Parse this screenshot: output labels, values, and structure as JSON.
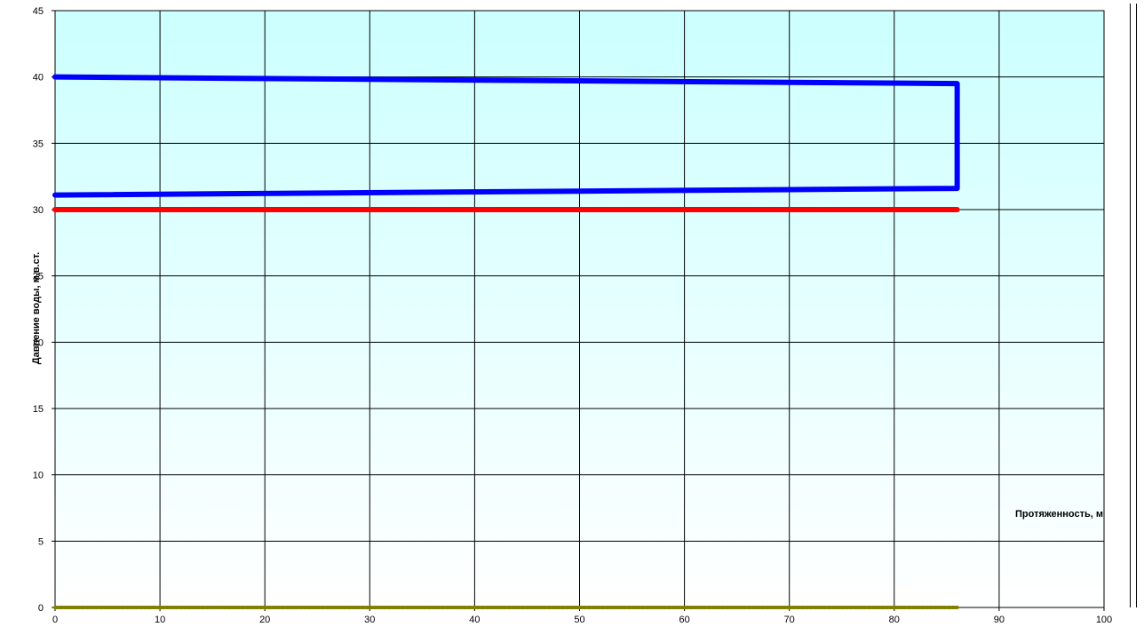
{
  "chart_data": {
    "type": "line",
    "title": "",
    "xlabel": "Протяженность, м",
    "ylabel": "Давление воды, м.в.ст.",
    "xlim": [
      0,
      100
    ],
    "ylim": [
      0,
      45
    ],
    "x_ticks": [
      "0",
      "10",
      "20",
      "30",
      "40",
      "50",
      "60",
      "70",
      "80",
      "90",
      "100"
    ],
    "y_ticks": [
      "0",
      "5",
      "10",
      "15",
      "20",
      "25",
      "30",
      "35",
      "40",
      "45"
    ],
    "grid": true,
    "series": [
      {
        "color": "#0000ff",
        "style": "solid",
        "points": [
          [
            0,
            40.0
          ],
          [
            86,
            39.5
          ],
          [
            86,
            31.6
          ],
          [
            0,
            31.1
          ]
        ]
      },
      {
        "color": "#ff0000",
        "style": "solid",
        "points": [
          [
            0,
            30.0
          ],
          [
            86,
            30.0
          ]
        ]
      },
      {
        "color": "#808000",
        "style": "dashed",
        "points": [
          [
            0,
            0.0
          ],
          [
            86,
            0.0
          ]
        ]
      }
    ],
    "background_gradient": [
      "#ccffff",
      "#ffffff"
    ]
  }
}
